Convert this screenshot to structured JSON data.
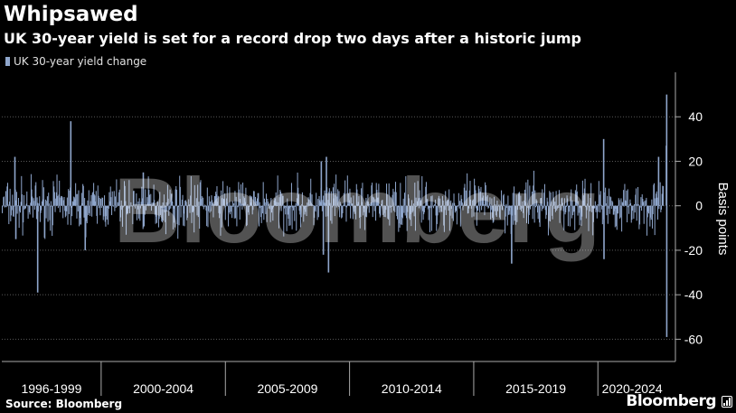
{
  "header": {
    "title": "Whipsawed",
    "subtitle": "UK 30-year yield is set for a record drop two days after a historic jump"
  },
  "legend": {
    "label": "UK 30-year yield change",
    "color": "#8fa6cc"
  },
  "footer": {
    "source": "Source: Bloomberg",
    "brand": "Bloomberg"
  },
  "watermark": "Bloomberg",
  "chart_data": {
    "type": "bar",
    "title": "Whipsawed",
    "subtitle": "UK 30-year yield is set for a record drop two days after a historic jump",
    "ylabel": "Basis points",
    "xlabel": "",
    "ylim": [
      -70,
      60
    ],
    "yticks": [
      -60,
      -40,
      -20,
      0,
      20,
      40
    ],
    "grid": true,
    "legend_position": "top-left",
    "x_range": [
      "1996-01-01",
      "2022-10-04"
    ],
    "x_group_labels": [
      "1996-1999",
      "2000-2004",
      "2005-2009",
      "2010-2014",
      "2015-2019",
      "2020-2024"
    ],
    "series": [
      {
        "name": "UK 30-year yield change",
        "color": "#8fa6cc",
        "noise_range": [
          -15,
          15
        ],
        "spikes": [
          {
            "date": "1996-07-01",
            "value": 22
          },
          {
            "date": "1996-07-15",
            "value": -15
          },
          {
            "date": "1997-06-01",
            "value": -39
          },
          {
            "date": "1998-10-01",
            "value": 38
          },
          {
            "date": "1999-05-01",
            "value": -20
          },
          {
            "date": "2001-09-01",
            "value": 15
          },
          {
            "date": "2008-11-01",
            "value": 20
          },
          {
            "date": "2008-12-01",
            "value": -22
          },
          {
            "date": "2009-01-15",
            "value": 22
          },
          {
            "date": "2009-02-15",
            "value": -30
          },
          {
            "date": "2016-07-01",
            "value": -26
          },
          {
            "date": "2020-03-15",
            "value": 30
          },
          {
            "date": "2020-03-20",
            "value": -24
          },
          {
            "date": "2022-06-01",
            "value": 22
          },
          {
            "date": "2022-09-23",
            "value": 27
          },
          {
            "date": "2022-09-28",
            "value": 50
          },
          {
            "date": "2022-09-29",
            "value": -59
          }
        ]
      }
    ]
  }
}
